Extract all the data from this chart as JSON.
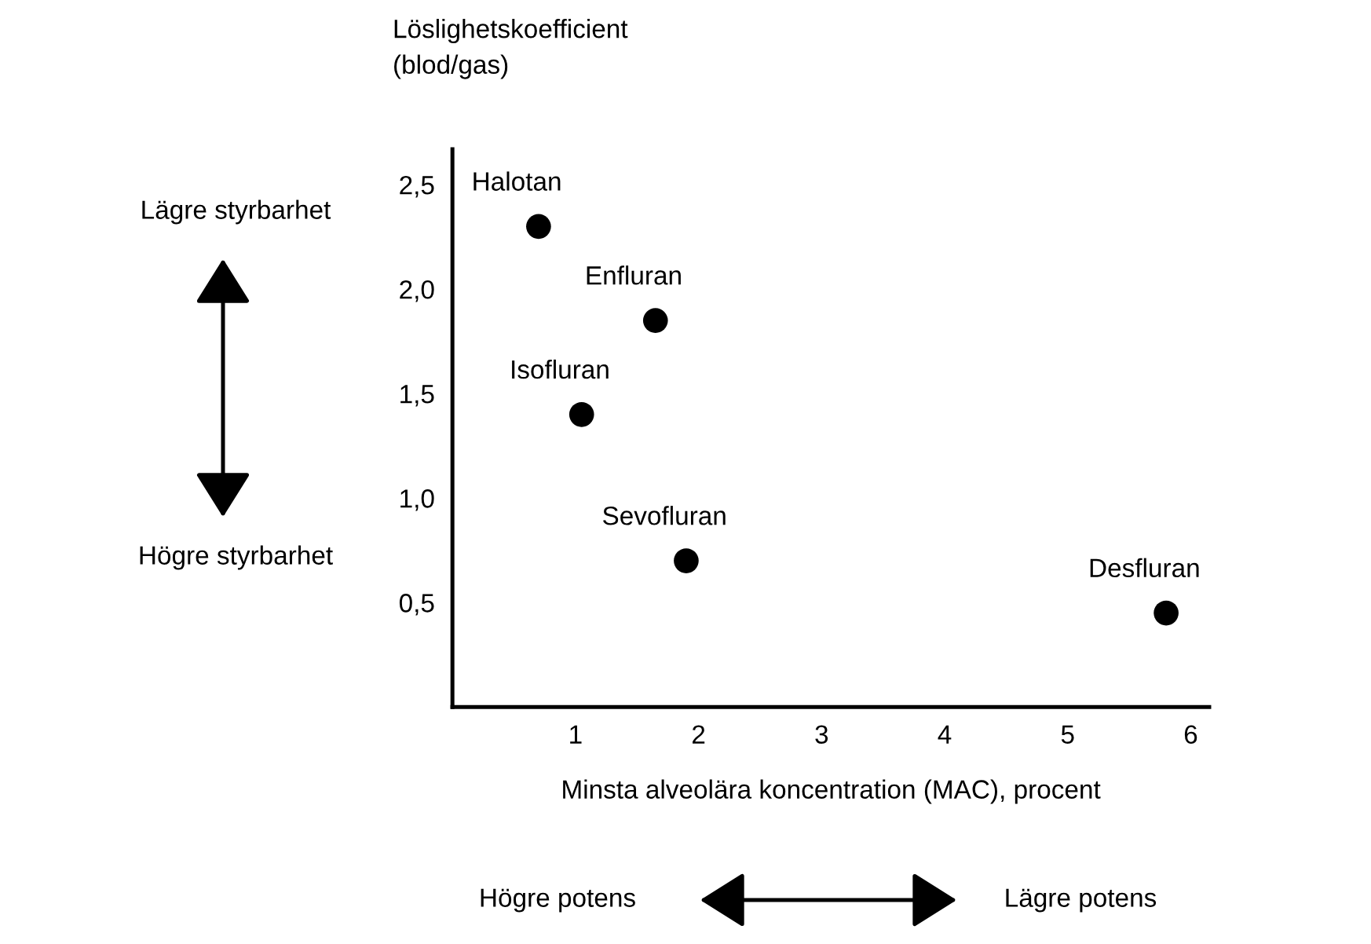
{
  "chart_data": {
    "type": "scatter",
    "ylabel": "Löslighetskoefficient\n(blod/gas)",
    "xlabel": "Minsta alveolära koncentration (MAC), procent",
    "x": [
      0.7,
      1.65,
      1.05,
      1.9,
      5.8
    ],
    "series": [
      {
        "color": "#000000",
        "values": [
          2.3,
          1.85,
          1.4,
          0.7,
          0.45
        ]
      }
    ],
    "marker": "circle",
    "grid": false,
    "legend": false,
    "xlim": [
      0,
      6.15
    ],
    "xticks": [
      1,
      2,
      3,
      4,
      5,
      6
    ],
    "ylim": [
      0,
      2.67
    ],
    "yticks": [
      {
        "value": 0.5,
        "label": "0,5"
      },
      {
        "value": 1.0,
        "label": "1,0"
      },
      {
        "value": 1.5,
        "label": "1,5"
      },
      {
        "value": 2.0,
        "label": "2,0"
      },
      {
        "value": 2.5,
        "label": "2,5"
      }
    ],
    "annotations": [
      {
        "text": "Halotan",
        "x": 0.7,
        "y": 2.3
      },
      {
        "text": "Enfluran",
        "x": 1.65,
        "y": 1.85
      },
      {
        "text": "Isofluran",
        "x": 1.05,
        "y": 1.4
      },
      {
        "text": "Sevofluran",
        "x": 1.9,
        "y": 0.7
      },
      {
        "text": "Desfluran",
        "x": 5.8,
        "y": 0.45
      },
      "Lägre styrbarhet",
      "Högre styrbarhet",
      "Högre potens",
      "Lägre potens"
    ]
  }
}
